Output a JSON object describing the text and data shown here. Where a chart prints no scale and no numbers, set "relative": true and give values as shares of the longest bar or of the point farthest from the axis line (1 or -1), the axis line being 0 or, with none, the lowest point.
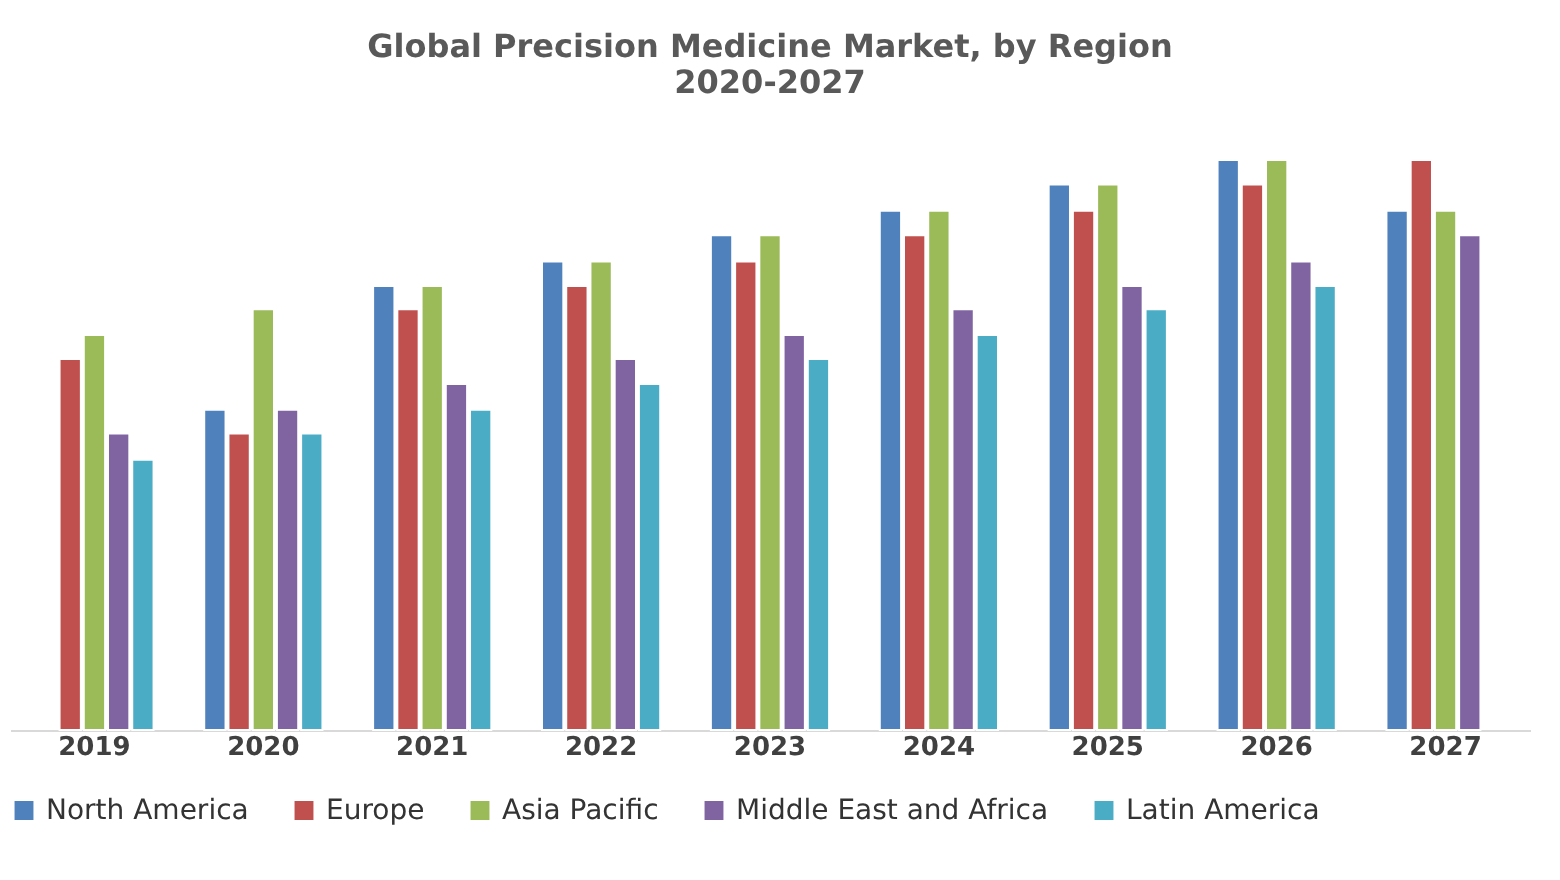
{
  "chart_data": {
    "type": "bar",
    "title": "Global Precision Medicine Market, by Region\n2020-2027",
    "relative": true,
    "legend": "bottom",
    "grid": false,
    "categories": [
      "2019",
      "2020",
      "2021",
      "2022",
      "2023",
      "2024",
      "2025",
      "2026",
      "2027"
    ],
    "series": [
      {
        "name": "North America",
        "color": "#4f81bd",
        "values": [
          null,
          0.562,
          0.779,
          0.822,
          0.868,
          0.911,
          0.957,
          1.0,
          0.911
        ]
      },
      {
        "name": "Europe",
        "color": "#c0504d",
        "values": [
          0.651,
          0.52,
          0.738,
          0.779,
          0.822,
          0.868,
          0.911,
          0.957,
          1.0
        ]
      },
      {
        "name": "Asia Pacific",
        "color": "#9bbb59",
        "values": [
          0.693,
          0.738,
          0.779,
          0.822,
          0.868,
          0.911,
          0.957,
          1.0,
          0.911
        ]
      },
      {
        "name": "Middle East and Africa",
        "color": "#8064a2",
        "values": [
          0.52,
          0.562,
          0.607,
          0.651,
          0.693,
          0.738,
          0.779,
          0.822,
          0.868
        ]
      },
      {
        "name": "Latin America",
        "color": "#4bacc6",
        "values": [
          0.474,
          0.52,
          0.562,
          0.607,
          0.651,
          0.693,
          0.738,
          0.779,
          null
        ]
      }
    ]
  }
}
